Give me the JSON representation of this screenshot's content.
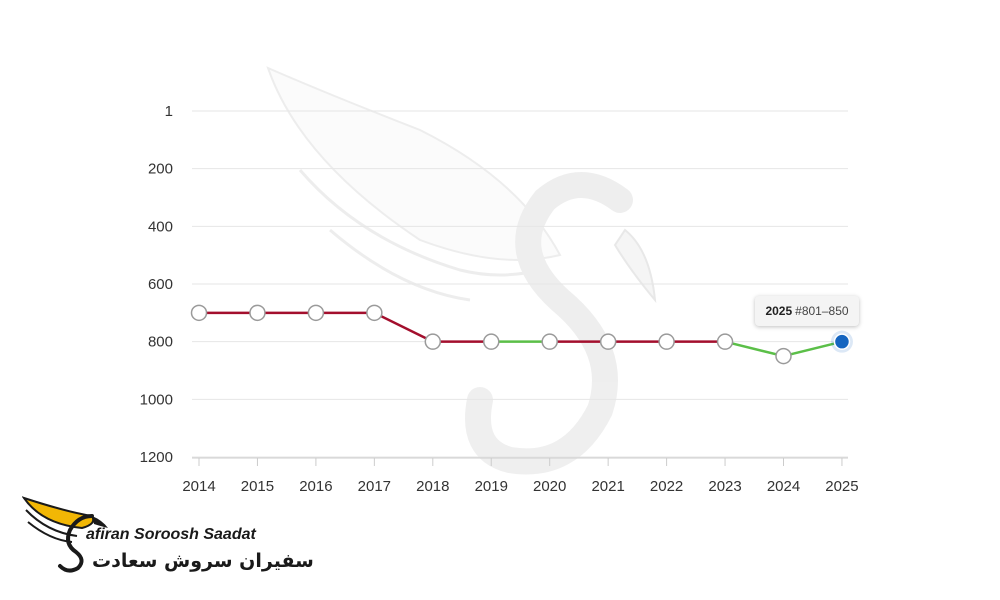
{
  "colors": {
    "down_line": "#a30f2d",
    "up_line": "#5bbf48",
    "point_fill": "#ffffff",
    "point_stroke": "#9a9a9a",
    "active_point": "#1565c0",
    "grid": "#e6e6e6",
    "logo_wing": "#f2b705"
  },
  "chart_data": {
    "type": "line",
    "y_axis_reversed": true,
    "y_ticks": [
      "1",
      "200",
      "400",
      "600",
      "800",
      "1000",
      "1200"
    ],
    "ylim": [
      1,
      1200
    ],
    "categories": [
      "2014",
      "2015",
      "2016",
      "2017",
      "2018",
      "2019",
      "2020",
      "2021",
      "2022",
      "2023",
      "2024",
      "2025"
    ],
    "values": [
      700,
      700,
      700,
      700,
      800,
      800,
      800,
      800,
      800,
      800,
      850,
      800
    ],
    "segment_colors": [
      "down",
      "down",
      "down",
      "down",
      "down",
      "up",
      "down",
      "down",
      "down",
      "up",
      "up"
    ],
    "grid": true,
    "tooltip": {
      "year": "2025",
      "rank": "#801–850"
    }
  },
  "brand": {
    "name_en": "afiran Soroosh Saadat",
    "name_fa": "سفیران سروش سعادت"
  }
}
